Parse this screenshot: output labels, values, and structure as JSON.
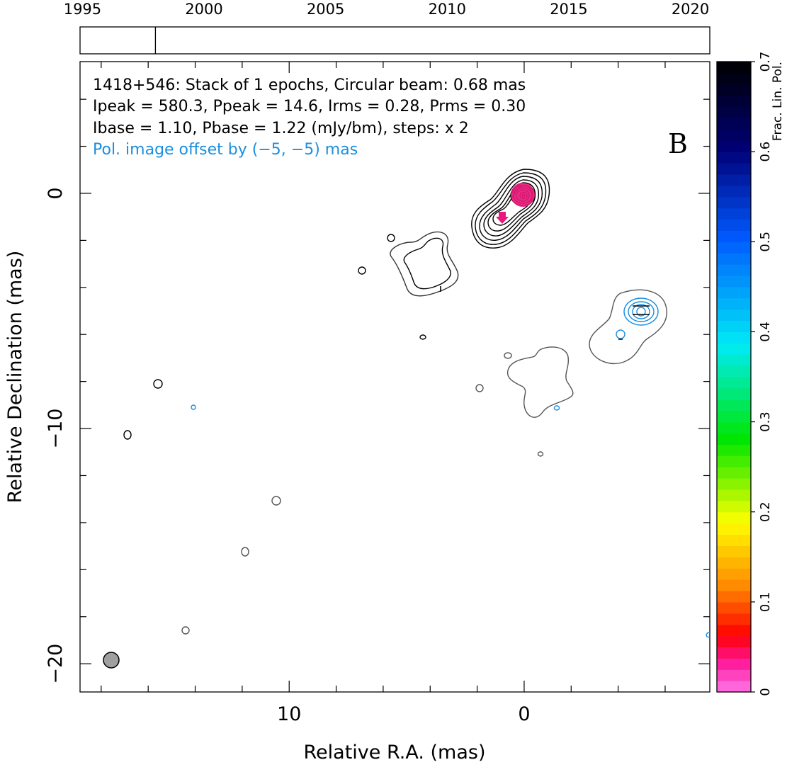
{
  "timeline": {
    "years": [
      "1995",
      "2000",
      "2005",
      "2010",
      "2015",
      "2020"
    ],
    "year_values": [
      1995,
      2000,
      2005,
      2010,
      2015,
      2020
    ],
    "range": [
      1994.9,
      2020.8
    ],
    "epoch_markers": [
      1998.0
    ]
  },
  "header": {
    "line1": "1418+546: Stack of 1 epochs, Circular beam: 0.68 mas",
    "line2": "Ipeak = 580.3, Ppeak = 14.6, Irms = 0.28, Prms = 0.30",
    "line3": "Ibase = 1.10, Pbase = 1.22 (mJy/bm), steps: x 2",
    "pol_note": "Pol. image offset by (−5, −5) mas",
    "panel_letter": "B"
  },
  "colorbar": {
    "label": "Frac. Lin. Pol.",
    "tick_labels": [
      "0",
      "0.1",
      "0.2",
      "0.3",
      "0.4",
      "0.5",
      "0.6",
      "0.7"
    ],
    "tick_values": [
      0,
      0.1,
      0.2,
      0.3,
      0.4,
      0.5,
      0.6,
      0.7
    ],
    "range": [
      0,
      0.7
    ],
    "steps": 56
  },
  "chart_data": {
    "type": "contour",
    "xlabel": "Relative R.A. (mas)",
    "ylabel": "Relative Declination (mas)",
    "xlim": [
      18.9,
      -7.9
    ],
    "ylim": [
      -21.2,
      5.6
    ],
    "x_tick_labels": [
      "10",
      "0"
    ],
    "x_tick_values": [
      10,
      0
    ],
    "y_tick_labels": [
      "−20",
      "−10",
      "0"
    ],
    "y_tick_values": [
      -20,
      -10,
      0
    ],
    "beam": {
      "ra": 17.6,
      "dec": -19.8,
      "diameter_mas": 0.68
    },
    "core_peak": {
      "ra": 0.0,
      "dec": 0.0,
      "peak_mJy": 580.3
    },
    "pol_peak": {
      "ra": 1.0,
      "dec": -1.0,
      "frac_pol": 0.02
    },
    "jet_components": [
      {
        "ra": 4.1,
        "dec": -3.1,
        "note": "inner jet knot"
      },
      {
        "ra": -0.3,
        "dec": -8.5,
        "note": "outer jet knot"
      },
      {
        "ra": -5.0,
        "dec": -5.0,
        "note": "offset polarization image"
      }
    ],
    "contour_base_mJy": 1.1,
    "pol_base_mJy": 1.22,
    "contour_step_factor": 2
  },
  "colors": {
    "contour": "#000000",
    "contour_faint": "#666666",
    "pol_contour": "#1a8fe0",
    "pol_note": "#1a8fe0",
    "core_fill": "#e8197a",
    "beam_fill": "#a0a0a0"
  }
}
